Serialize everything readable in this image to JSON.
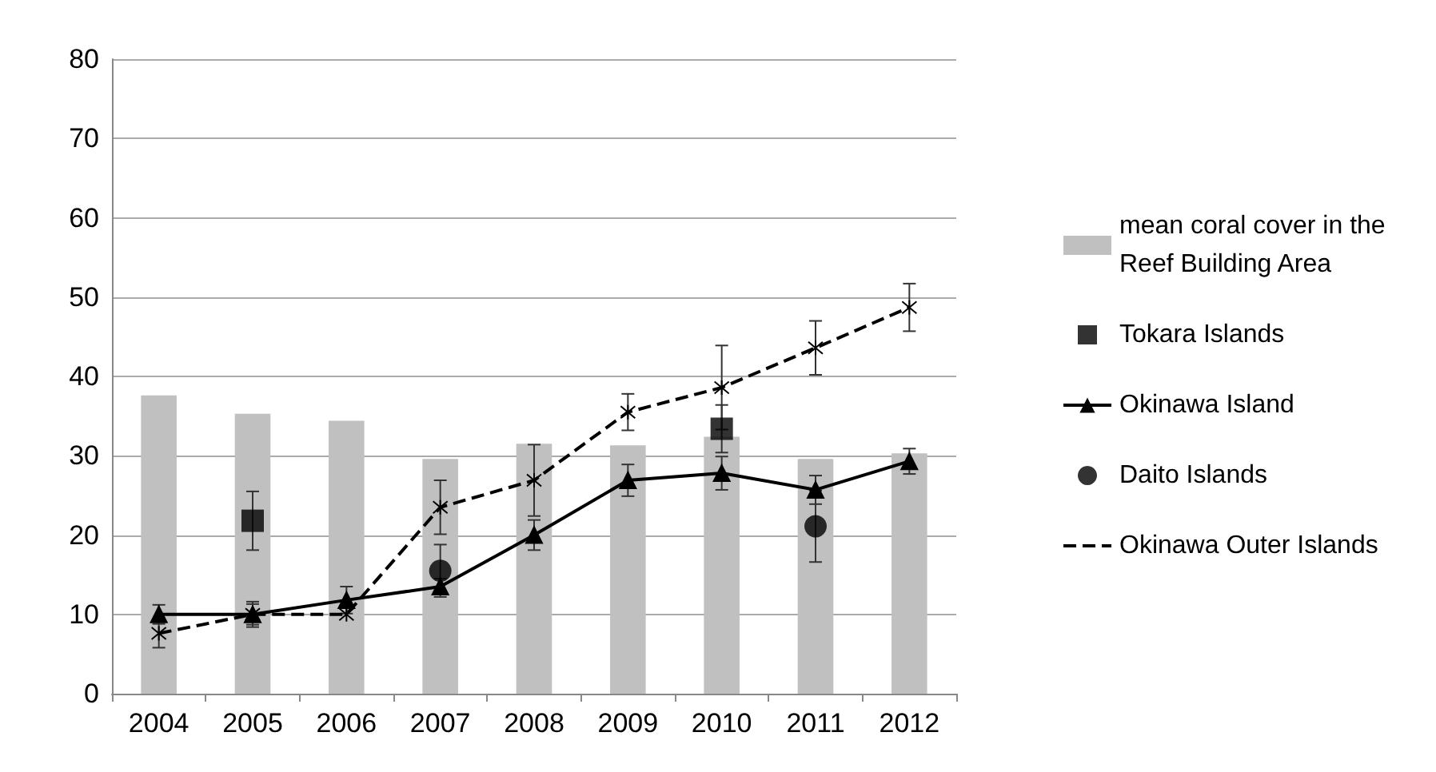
{
  "chart_data": {
    "type": "bar",
    "categories": [
      "2004",
      "2005",
      "2006",
      "2007",
      "2008",
      "2009",
      "2010",
      "2011",
      "2012"
    ],
    "series": [
      {
        "name": "mean coral cover in the Reef Building Area",
        "color": "#c0c0c0",
        "values": [
          37.6,
          35.3,
          34.4,
          29.6,
          31.5,
          31.3,
          32.4,
          29.6,
          30.3
        ]
      },
      {
        "name": "Tokara Islands",
        "type": "scatter",
        "color": "#000000",
        "marker": "square",
        "values": [
          null,
          21.8,
          null,
          null,
          null,
          null,
          33.4,
          null,
          null
        ],
        "errors": [
          null,
          3.7,
          null,
          null,
          null,
          null,
          3,
          null,
          null
        ]
      },
      {
        "name": "Okinawa Island",
        "type": "line",
        "color": "#000000",
        "marker": "triangle",
        "line_style": "solid",
        "values": [
          10,
          10,
          11.8,
          13.5,
          20,
          26.9,
          27.8,
          25.7,
          29.3
        ],
        "errors": [
          1.2,
          1.6,
          1.7,
          1,
          1.9,
          2,
          2.1,
          1.8,
          1.6
        ]
      },
      {
        "name": "Daito Islands",
        "type": "scatter",
        "color": "#000000",
        "marker": "circle",
        "values": [
          null,
          null,
          null,
          15.5,
          null,
          null,
          null,
          21.1,
          null
        ],
        "errors": [
          null,
          null,
          null,
          3.3,
          null,
          null,
          null,
          4.5,
          null
        ]
      },
      {
        "name": "Okinawa Outer Islands",
        "type": "line",
        "color": "#000000",
        "marker": "cross",
        "line_style": "dashed",
        "values": [
          7.6,
          10,
          10,
          23.5,
          26.9,
          35.5,
          38.6,
          43.6,
          48.7
        ],
        "errors": [
          1.8,
          1.3,
          null,
          3.4,
          4.5,
          2.3,
          5.3,
          3.4,
          3
        ]
      }
    ],
    "ylim": [
      0,
      80
    ],
    "yticks": [
      0,
      10,
      20,
      30,
      40,
      50,
      60,
      70,
      80
    ],
    "grid": "y",
    "legend": "right"
  }
}
